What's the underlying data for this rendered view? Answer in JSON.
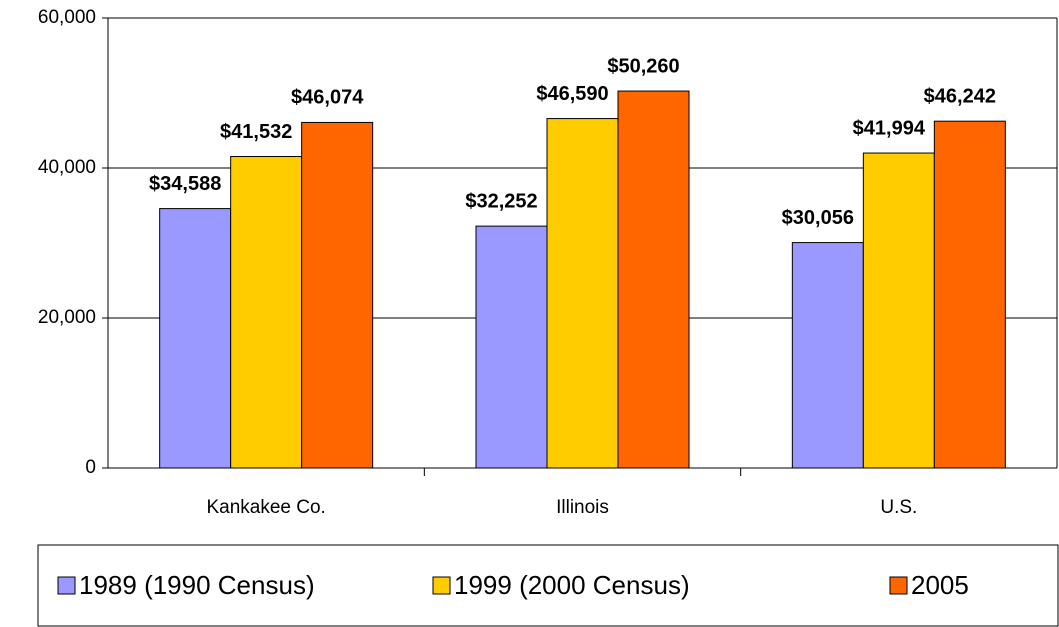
{
  "chart_data": {
    "type": "bar",
    "categories": [
      "Kankakee Co.",
      "Illinois",
      "U.S."
    ],
    "series": [
      {
        "name": "1989 (1990 Census)",
        "color": "#9999ff",
        "values": [
          34588,
          32252,
          30056
        ],
        "value_labels": [
          "$34,588",
          "$32,252",
          "$30,056"
        ]
      },
      {
        "name": "1999 (2000 Census)",
        "color": "#ffcc00",
        "values": [
          41532,
          46590,
          41994
        ],
        "value_labels": [
          "$41,532",
          "$46,590",
          "$41,994"
        ]
      },
      {
        "name": "2005",
        "color": "#ff6600",
        "values": [
          46074,
          50260,
          46242
        ],
        "value_labels": [
          "$46,074",
          "$50,260",
          "$46,242"
        ]
      }
    ],
    "ylim": [
      0,
      60000
    ],
    "yticks": [
      0,
      {
        "value": 20000,
        "label": "20,000"
      },
      {
        "value": 40000,
        "label": "40,000"
      },
      {
        "value": 60000,
        "label": "60,000"
      }
    ],
    "grid": true
  }
}
